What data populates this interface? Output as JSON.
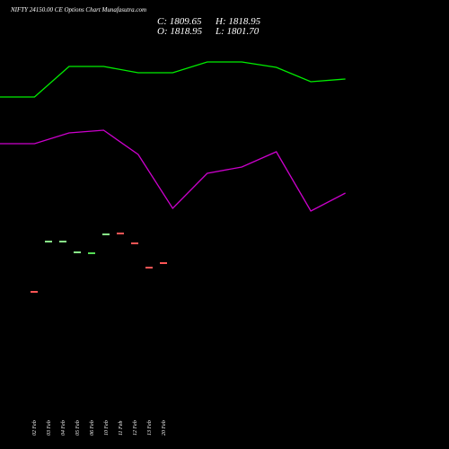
{
  "chart_data": [
    {
      "type": "line",
      "title": "NIFTY 24150.00  CE Options  Chart Munafasutra.com",
      "annotations": [
        "C: 1809.65",
        "H: 1818.95",
        "O: 1818.95",
        "L: 1801.70"
      ],
      "x": [
        0,
        1,
        2,
        3,
        4,
        5,
        6,
        7,
        8,
        9,
        10
      ],
      "xlim": [
        0,
        13
      ],
      "ylim": [
        0,
        500
      ],
      "series": [
        {
          "color": "#00ee00",
          "values": [
            392,
            392,
            426,
            426,
            419,
            419,
            431,
            431,
            425,
            409,
            412
          ]
        },
        {
          "color": "#cc00cc",
          "values": [
            340,
            340,
            352,
            355,
            328,
            268,
            307,
            314,
            331,
            265,
            285
          ]
        }
      ]
    },
    {
      "type": "candle",
      "categories": [
        "02 Feb",
        "03 Feb",
        "04 Feb",
        "05 Feb",
        "06 Feb",
        "10 Feb",
        "11 Feb",
        "12 Feb",
        "13 Feb",
        "20 Feb"
      ],
      "values": [
        175,
        231,
        231,
        219,
        218,
        239,
        240,
        229,
        202,
        207
      ],
      "colors": [
        "#ff5555",
        "#88ee88",
        "#88ee88",
        "#88ee88",
        "#55dd55",
        "#88ee88",
        "#ff5555",
        "#ff5555",
        "#ff5555",
        "#ff5555"
      ],
      "ylim": [
        0,
        500
      ]
    }
  ]
}
